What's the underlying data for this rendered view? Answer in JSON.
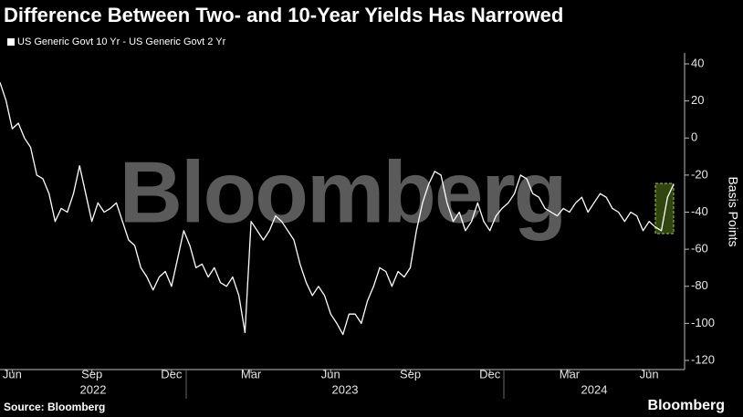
{
  "chart_data": {
    "type": "line",
    "title": "Difference Between Two- and 10-Year Yields Has Narrowed",
    "watermark": "Bloomberg",
    "y_label": "Basis Points",
    "source": "Source: Bloomberg",
    "logo": "Bloomberg",
    "years": [
      "2022",
      "2023",
      "2024"
    ],
    "categories": [
      null,
      null,
      "Jun",
      null,
      null,
      null,
      null,
      null,
      null,
      null,
      null,
      null,
      null,
      null,
      null,
      "Sep",
      null,
      null,
      null,
      null,
      null,
      null,
      null,
      null,
      null,
      null,
      null,
      null,
      "Dec",
      null,
      null,
      null,
      null,
      null,
      null,
      null,
      null,
      null,
      null,
      null,
      null,
      "Mar",
      null,
      null,
      null,
      null,
      null,
      null,
      null,
      null,
      null,
      null,
      null,
      null,
      "Jun",
      null,
      null,
      null,
      null,
      null,
      null,
      null,
      null,
      null,
      null,
      null,
      null,
      "Sep",
      null,
      null,
      null,
      null,
      null,
      null,
      null,
      null,
      null,
      null,
      null,
      null,
      "Dec",
      null,
      null,
      null,
      null,
      null,
      null,
      null,
      null,
      null,
      null,
      null,
      null,
      "Mar",
      null,
      null,
      null,
      null,
      null,
      null,
      null,
      null,
      null,
      null,
      null,
      null,
      "Jun",
      null,
      null,
      null,
      null
    ],
    "series": [
      {
        "name": "US Generic Govt 10 Yr - US Generic Govt 2 Yr",
        "color": "#ffffff",
        "values": [
          30,
          20,
          5,
          8,
          0,
          -5,
          -20,
          -22,
          -30,
          -45,
          -38,
          -40,
          -30,
          -15,
          -30,
          -45,
          -35,
          -40,
          -38,
          -35,
          -45,
          -55,
          -58,
          -70,
          -75,
          -82,
          -75,
          -72,
          -80,
          -65,
          -50,
          -58,
          -70,
          -68,
          -75,
          -70,
          -78,
          -80,
          -75,
          -85,
          -105,
          -45,
          -50,
          -55,
          -50,
          -42,
          -45,
          -50,
          -55,
          -68,
          -78,
          -85,
          -80,
          -85,
          -95,
          -100,
          -106,
          -95,
          -95,
          -100,
          -88,
          -80,
          -70,
          -72,
          -80,
          -72,
          -75,
          -70,
          -50,
          -35,
          -25,
          -18,
          -20,
          -35,
          -45,
          -40,
          -50,
          -45,
          -35,
          -45,
          -50,
          -42,
          -38,
          -35,
          -30,
          -20,
          -22,
          -30,
          -32,
          -38,
          -40,
          -42,
          -38,
          -40,
          -35,
          -32,
          -40,
          -35,
          -30,
          -32,
          -38,
          -40,
          -45,
          -40,
          -42,
          -50,
          -45,
          -48,
          -50,
          -32,
          -25
        ]
      }
    ],
    "ylim": [
      -120,
      40
    ],
    "yticks": [
      40,
      20,
      0,
      -20,
      -40,
      -60,
      -80,
      -100,
      -120
    ],
    "legend": "top-left"
  }
}
